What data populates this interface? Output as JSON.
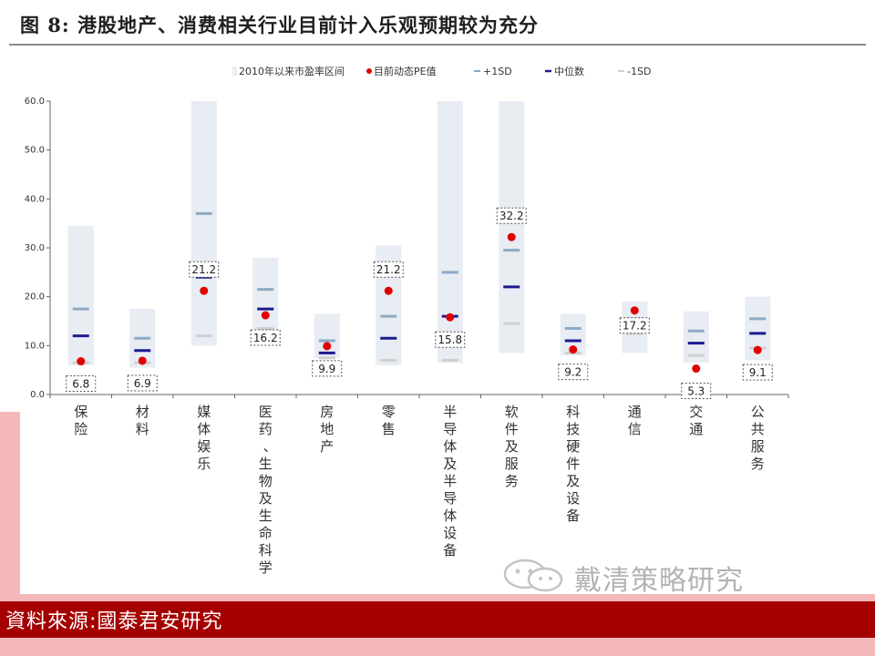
{
  "header": {
    "title": "图 8: 港股地产、消费相关行业目前计入乐观预期较为充分"
  },
  "footer": {
    "source": "資料來源:國泰君安研究"
  },
  "watermark": {
    "text": "戴清策略研究",
    "icon": "wechat-icon"
  },
  "colors": {
    "range": "#e8ecf3",
    "pe": "#e10000",
    "plus1sd": "#8ea9c4",
    "median": "#1b1b8f",
    "minus1sd": "#cfcfcf",
    "footer": "#a50000",
    "accent": "#f6b9b9"
  },
  "chart_data": {
    "type": "range",
    "legend": [
      "2010年以来市盈率区间",
      "目前动态PE值",
      "+1SD",
      "中位数",
      "-1SD"
    ],
    "ylim": [
      0,
      60
    ],
    "yticks": [
      "0.0",
      "10.0",
      "20.0",
      "30.0",
      "40.0",
      "50.0",
      "60.0"
    ],
    "categories": [
      "保险",
      "材料",
      "媒体娱乐",
      "医药、生物及生命科学",
      "房地产",
      "零售",
      "半导体及半导体设备",
      "软件及服务",
      "科技硬件及设备",
      "通信",
      "交通",
      "公共服务"
    ],
    "category_lines": [
      [
        "保",
        "险"
      ],
      [
        "材",
        "料"
      ],
      [
        "媒",
        "体",
        "娱",
        "乐"
      ],
      [
        "医",
        "药",
        "、",
        "生",
        "物",
        "及",
        "生",
        "命",
        "科",
        "学"
      ],
      [
        "房",
        "地",
        "产"
      ],
      [
        "零",
        "售"
      ],
      [
        "半",
        "导",
        "体",
        "及",
        "半",
        "导",
        "体",
        "设",
        "备"
      ],
      [
        "软",
        "件",
        "及",
        "服",
        "务"
      ],
      [
        "科",
        "技",
        "硬",
        "件",
        "及",
        "设",
        "备"
      ],
      [
        "通",
        "信"
      ],
      [
        "交",
        "通"
      ],
      [
        "公",
        "共",
        "服",
        "务"
      ]
    ],
    "range_low": [
      6,
      5.5,
      10,
      13,
      7.5,
      6,
      6.5,
      8.5,
      8,
      8.5,
      6.5,
      7
    ],
    "range_high": [
      34.5,
      17.5,
      60,
      28,
      16.5,
      30.5,
      60,
      60,
      16.5,
      19,
      17,
      20
    ],
    "plus1sd": [
      17.5,
      11.5,
      37,
      21.5,
      11,
      16,
      25,
      29.5,
      13.5,
      15.5,
      13,
      15.5
    ],
    "median": [
      12,
      9,
      24,
      17.5,
      8.5,
      11.5,
      16,
      22,
      11,
      14,
      10.5,
      12.5
    ],
    "minus1sd": [
      6.5,
      6.5,
      12,
      13.5,
      7.5,
      7,
      7,
      14.5,
      8.5,
      12.5,
      8,
      9.5
    ],
    "pe": [
      6.8,
      6.9,
      21.2,
      16.2,
      9.9,
      21.2,
      15.8,
      32.2,
      9.2,
      17.2,
      5.3,
      9.1
    ],
    "pe_labels": [
      "6.8",
      "6.9",
      "21.2",
      "16.2",
      "9.9",
      "21.2",
      "15.8",
      "32.2",
      "9.2",
      "17.2",
      "5.3",
      "9.1"
    ]
  }
}
